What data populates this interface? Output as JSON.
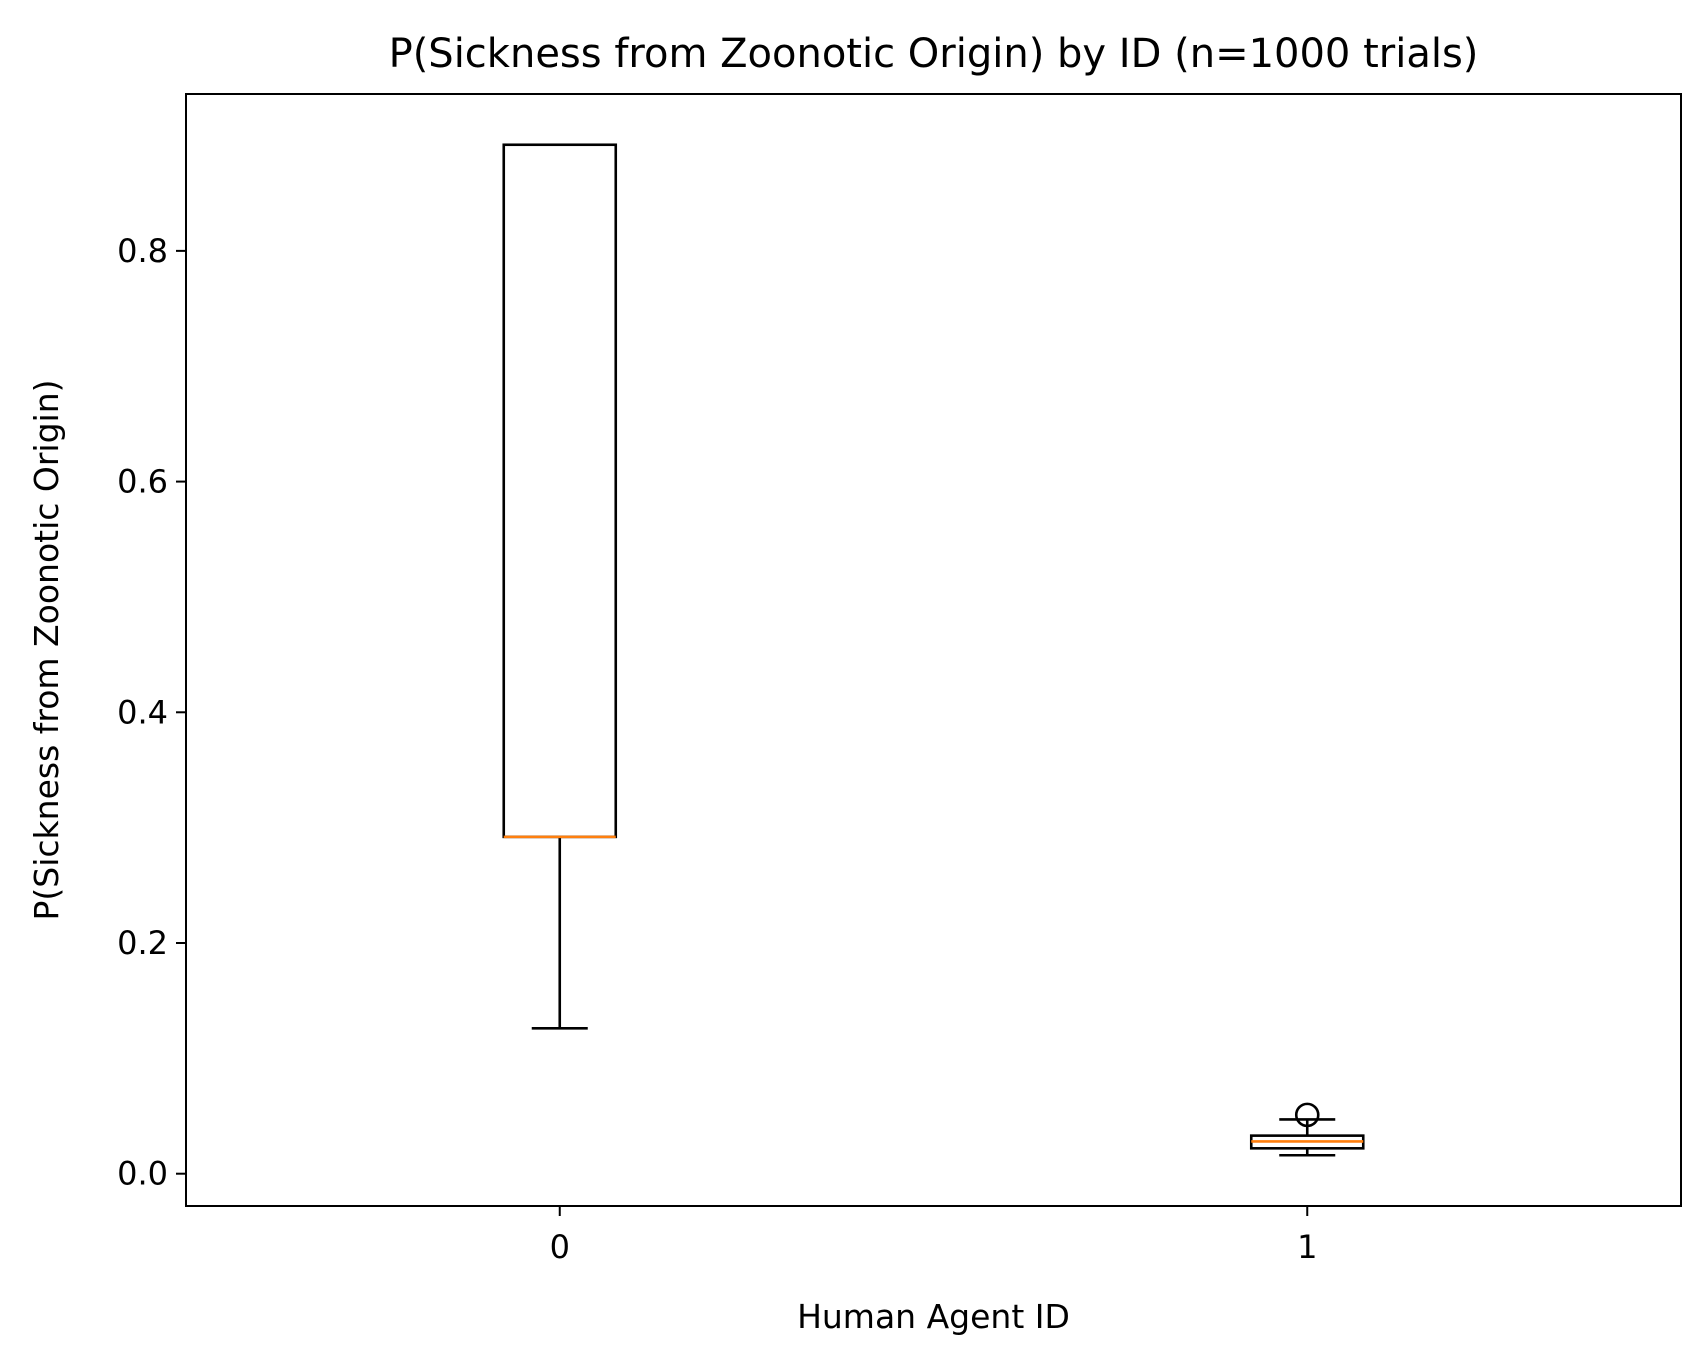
{
  "chart_data": {
    "type": "box",
    "title": "P(Sickness from Zoonotic Origin) by ID (n=1000 trials)",
    "xlabel": "Human Agent ID",
    "ylabel": "P(Sickness from Zoonotic Origin)",
    "ylim": [
      -0.028,
      0.936
    ],
    "grid": false,
    "y_ticks": [
      {
        "value": 0.0,
        "label": "0.0"
      },
      {
        "value": 0.2,
        "label": "0.2"
      },
      {
        "value": 0.4,
        "label": "0.4"
      },
      {
        "value": 0.6,
        "label": "0.6"
      },
      {
        "value": 0.8,
        "label": "0.8"
      }
    ],
    "categories": [
      "0",
      "1"
    ],
    "boxes": [
      {
        "category": "0",
        "whisker_low": 0.126,
        "q1": 0.292,
        "median": 0.292,
        "q3": 0.892,
        "whisker_high": 0.892,
        "outliers": []
      },
      {
        "category": "1",
        "whisker_low": 0.016,
        "q1": 0.022,
        "median": 0.028,
        "q3": 0.033,
        "whisker_high": 0.047,
        "outliers": [
          0.051
        ]
      }
    ],
    "colors": {
      "box": "#000000",
      "median": "#ff7f0e",
      "whisker": "#000000",
      "outlier": "#000000",
      "axes": "#000000",
      "background": "#ffffff"
    }
  }
}
